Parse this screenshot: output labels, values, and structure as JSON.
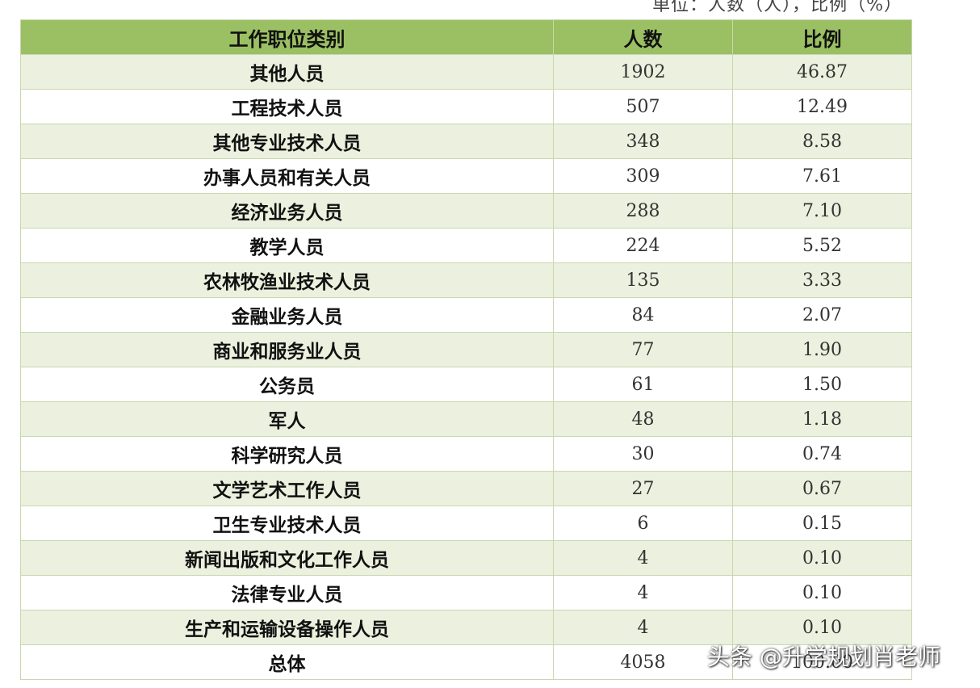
{
  "unit_note": "单位：人数（人），比例（%）",
  "table": {
    "header": [
      "工作职位类别",
      "人数",
      "比例"
    ],
    "rows": [
      [
        "其他人员",
        "1902",
        "46.87"
      ],
      [
        "工程技术人员",
        "507",
        "12.49"
      ],
      [
        "其他专业技术人员",
        "348",
        "8.58"
      ],
      [
        "办事人员和有关人员",
        "309",
        "7.61"
      ],
      [
        "经济业务人员",
        "288",
        "7.10"
      ],
      [
        "教学人员",
        "224",
        "5.52"
      ],
      [
        "农林牧渔业技术人员",
        "135",
        "3.33"
      ],
      [
        "金融业务人员",
        "84",
        "2.07"
      ],
      [
        "商业和服务业人员",
        "77",
        "1.90"
      ],
      [
        "公务员",
        "61",
        "1.50"
      ],
      [
        "军人",
        "48",
        "1.18"
      ],
      [
        "科学研究人员",
        "30",
        "0.74"
      ],
      [
        "文学艺术工作人员",
        "27",
        "0.67"
      ],
      [
        "卫生专业技术人员",
        "6",
        "0.15"
      ],
      [
        "新闻出版和文化工作人员",
        "4",
        "0.10"
      ],
      [
        "法律专业人员",
        "4",
        "0.10"
      ],
      [
        "生产和运输设备操作人员",
        "4",
        "0.10"
      ],
      [
        "总体",
        "4058",
        "100.00"
      ]
    ]
  },
  "watermark": "头条 @升学规划肖老师"
}
